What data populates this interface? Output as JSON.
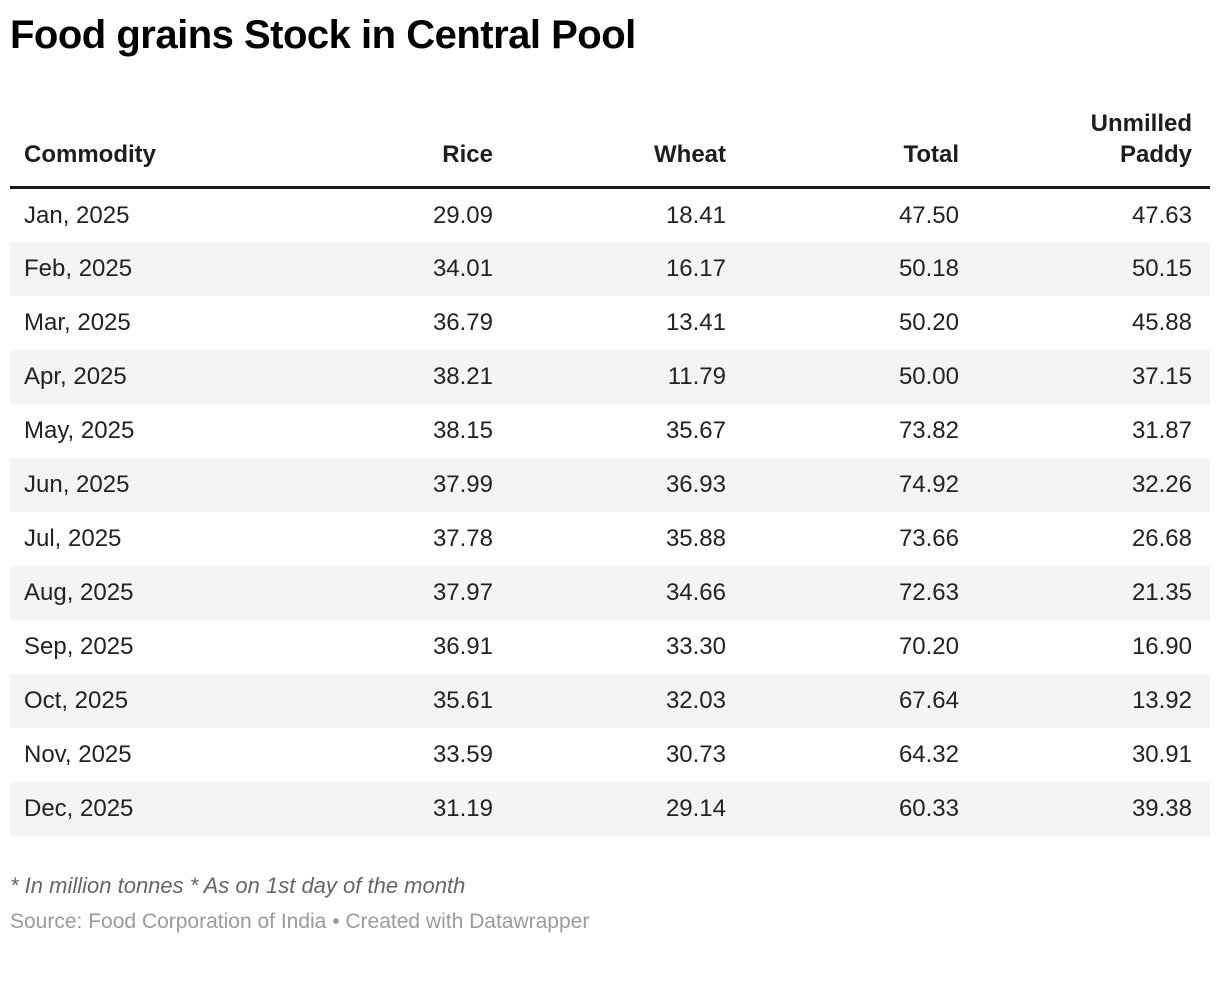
{
  "header": {
    "title": "Food grains Stock in Central Pool"
  },
  "chart_data": {
    "type": "table",
    "title": "Food grains Stock in Central Pool",
    "columns": [
      {
        "label": "Commodity",
        "align": "left"
      },
      {
        "label": "Rice",
        "align": "right"
      },
      {
        "label": "Wheat",
        "align": "right"
      },
      {
        "label": "Total",
        "align": "right"
      },
      {
        "label": "Unmilled Paddy",
        "align": "right"
      }
    ],
    "rows": [
      [
        "Jan, 2025",
        "29.09",
        "18.41",
        "47.50",
        "47.63"
      ],
      [
        "Feb, 2025",
        "34.01",
        "16.17",
        "50.18",
        "50.15"
      ],
      [
        "Mar, 2025",
        "36.79",
        "13.41",
        "50.20",
        "45.88"
      ],
      [
        "Apr, 2025",
        "38.21",
        "11.79",
        "50.00",
        "37.15"
      ],
      [
        "May, 2025",
        "38.15",
        "35.67",
        "73.82",
        "31.87"
      ],
      [
        "Jun, 2025",
        "37.99",
        "36.93",
        "74.92",
        "32.26"
      ],
      [
        "Jul, 2025",
        "37.78",
        "35.88",
        "73.66",
        "26.68"
      ],
      [
        "Aug, 2025",
        "37.97",
        "34.66",
        "72.63",
        "21.35"
      ],
      [
        "Sep, 2025",
        "36.91",
        "33.30",
        "70.20",
        "16.90"
      ],
      [
        "Oct, 2025",
        "35.61",
        "32.03",
        "67.64",
        "13.92"
      ],
      [
        "Nov, 2025",
        "33.59",
        "30.73",
        "64.32",
        "30.91"
      ],
      [
        "Dec, 2025",
        "31.19",
        "29.14",
        "60.33",
        "39.38"
      ]
    ],
    "units_note": "* In million tonnes * As on 1st day of the month",
    "source_label": "Source: Food Corporation of India",
    "separator": " • ",
    "attribution": "Created with Datawrapper",
    "layout": {
      "striped_rows": true,
      "header_rule": true,
      "legend_position": "none"
    }
  },
  "colors": {
    "title_text": "#000000",
    "body_text": "#222222",
    "stripe": "#f4f4f4",
    "header_rule": "#1a1a1a",
    "notes_text": "#666666",
    "source_text": "#9b9b9b"
  }
}
